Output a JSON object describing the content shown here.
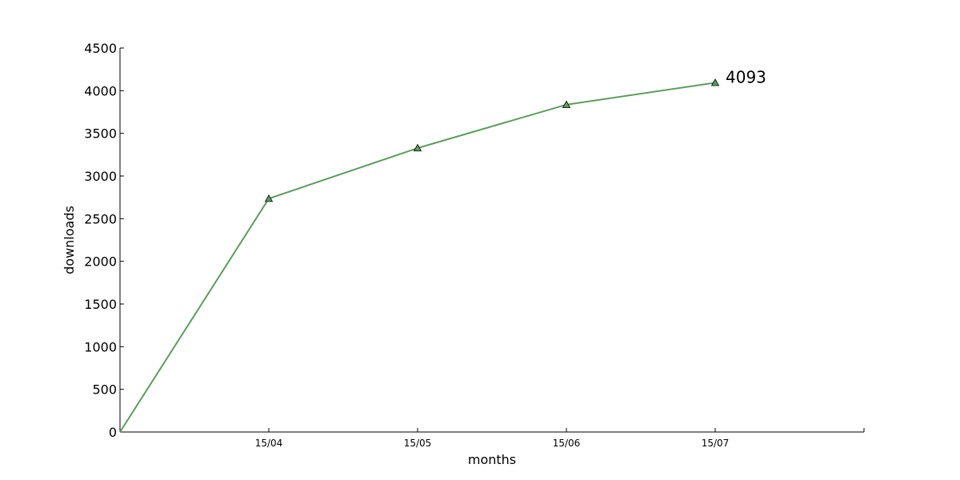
{
  "chart_data": {
    "type": "line",
    "xlabel": "months",
    "ylabel": "downloads",
    "ylim": [
      0,
      4500
    ],
    "yticks": [
      0,
      500,
      1000,
      1500,
      2000,
      2500,
      3000,
      3500,
      4000,
      4500
    ],
    "xlim": [
      0,
      5
    ],
    "xticks": [
      {
        "x": 1,
        "label": "15/04"
      },
      {
        "x": 2,
        "label": "15/05"
      },
      {
        "x": 3,
        "label": "15/06"
      },
      {
        "x": 4,
        "label": "15/07"
      }
    ],
    "series": [
      {
        "color": "#5a9e5a",
        "marker": "triangle",
        "x": [
          0,
          1,
          2,
          3,
          4
        ],
        "y": [
          0,
          2735,
          3327,
          3836,
          4093
        ],
        "marked": [
          false,
          true,
          true,
          true,
          true
        ]
      }
    ],
    "annotation": {
      "text": "4093",
      "x": 4,
      "y": 4093
    },
    "grid": false,
    "spines": [
      "left",
      "bottom"
    ]
  }
}
